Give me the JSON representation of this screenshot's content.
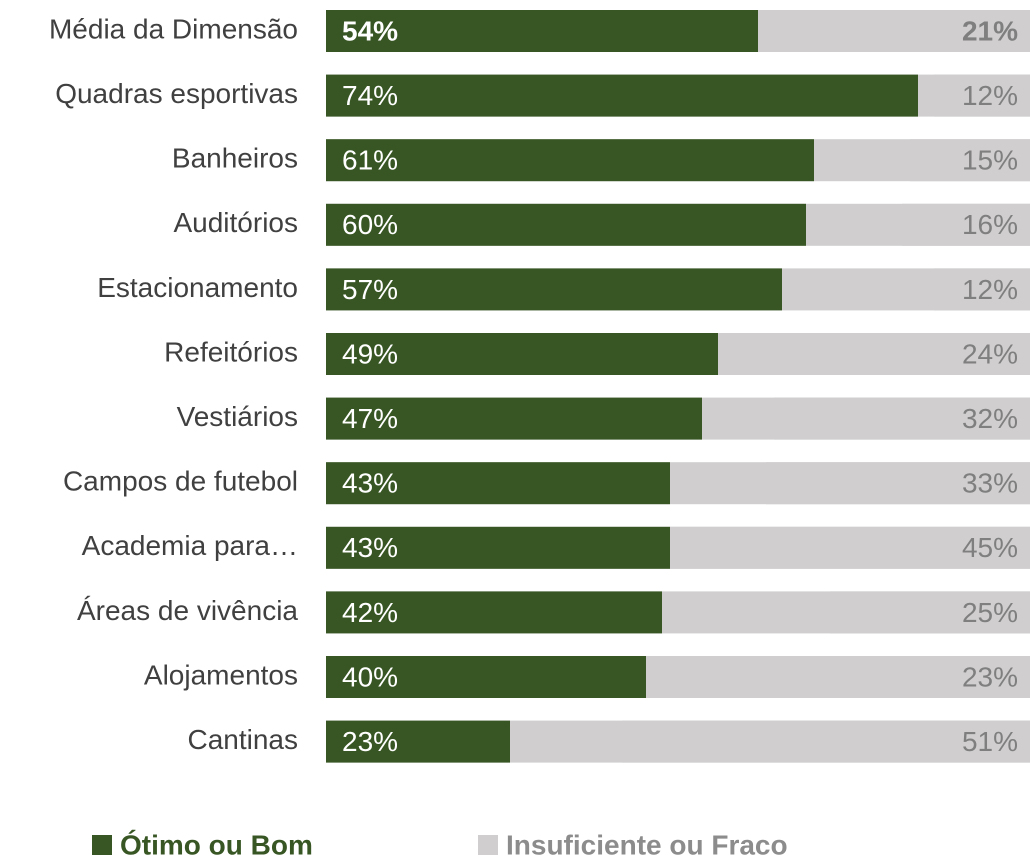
{
  "chart_data": {
    "type": "bar",
    "orientation": "horizontal",
    "stacked": true,
    "categories": [
      "Média da Dimensão",
      "Quadras esportivas",
      "Banheiros",
      "Auditórios",
      "Estacionamento",
      "Refeitórios",
      "Vestiários",
      "Campos de futebol",
      "Academia para…",
      "Áreas de vivência",
      "Alojamentos",
      "Cantinas"
    ],
    "series": [
      {
        "name": "Ótimo ou Bom",
        "color": "#375623",
        "values": [
          54,
          74,
          61,
          60,
          57,
          49,
          47,
          43,
          43,
          42,
          40,
          23
        ],
        "value_labels": [
          "54%",
          "74%",
          "61%",
          "60%",
          "57%",
          "49%",
          "47%",
          "43%",
          "43%",
          "42%",
          "40%",
          "23%"
        ]
      },
      {
        "name": "Insuficiente ou Fraco",
        "color": "#d0cece",
        "values": [
          21,
          12,
          15,
          16,
          12,
          24,
          32,
          33,
          45,
          25,
          23,
          51
        ],
        "value_labels": [
          "21%",
          "12%",
          "15%",
          "16%",
          "12%",
          "24%",
          "32%",
          "33%",
          "45%",
          "25%",
          "23%",
          "51%"
        ]
      }
    ],
    "legend": "bottom"
  }
}
